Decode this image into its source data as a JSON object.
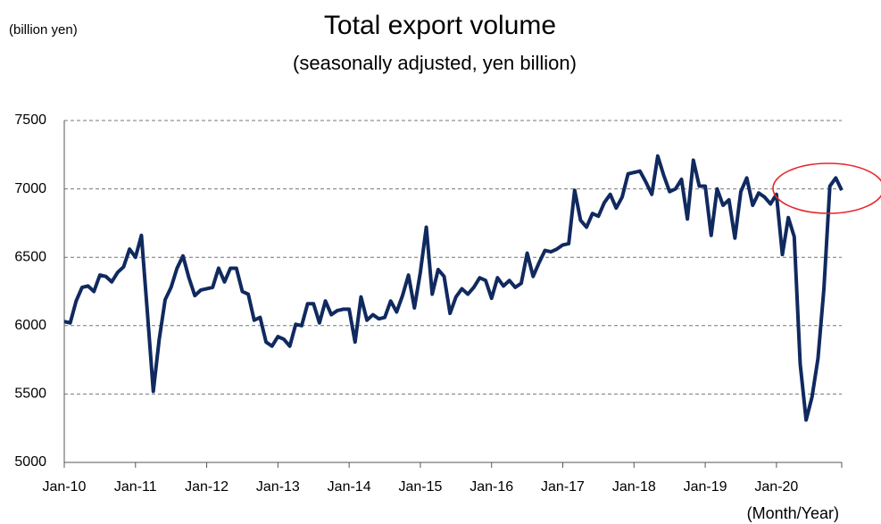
{
  "chart_data": {
    "type": "line",
    "title": "Total export volume",
    "subtitle": "(seasonally adjusted, yen billion)",
    "y_unit_label": "(billion yen)",
    "x_label": "(Month/Year)",
    "categories": [
      "Jan-10",
      null,
      null,
      null,
      null,
      null,
      null,
      null,
      null,
      null,
      null,
      null,
      "Jan-11",
      null,
      null,
      null,
      null,
      null,
      null,
      null,
      null,
      null,
      null,
      null,
      "Jan-12",
      null,
      null,
      null,
      null,
      null,
      null,
      null,
      null,
      null,
      null,
      null,
      "Jan-13",
      null,
      null,
      null,
      null,
      null,
      null,
      null,
      null,
      null,
      null,
      null,
      "Jan-14",
      null,
      null,
      null,
      null,
      null,
      null,
      null,
      null,
      null,
      null,
      null,
      "Jan-15",
      null,
      null,
      null,
      null,
      null,
      null,
      null,
      null,
      null,
      null,
      null,
      "Jan-16",
      null,
      null,
      null,
      null,
      null,
      null,
      null,
      null,
      null,
      null,
      null,
      "Jan-17",
      null,
      null,
      null,
      null,
      null,
      null,
      null,
      null,
      null,
      null,
      null,
      "Jan-18",
      null,
      null,
      null,
      null,
      null,
      null,
      null,
      null,
      null,
      null,
      null,
      "Jan-19",
      null,
      null,
      null,
      null,
      null,
      null,
      null,
      null,
      null,
      null,
      null,
      "Jan-20",
      null,
      null,
      null,
      null,
      null,
      null,
      null,
      null,
      null,
      null,
      null
    ],
    "color": "#10295f",
    "values": [
      6030,
      6020,
      6180,
      6280,
      6290,
      6250,
      6370,
      6360,
      6320,
      6390,
      6430,
      6560,
      6500,
      6660,
      6100,
      5520,
      5900,
      6190,
      6280,
      6420,
      6510,
      6350,
      6220,
      6260,
      6270,
      6280,
      6420,
      6320,
      6420,
      6420,
      6250,
      6230,
      6040,
      6060,
      5880,
      5850,
      5920,
      5900,
      5850,
      6010,
      6000,
      6160,
      6160,
      6020,
      6180,
      6080,
      6110,
      6120,
      6120,
      5880,
      6210,
      6040,
      6080,
      6050,
      6060,
      6180,
      6100,
      6220,
      6370,
      6130,
      6390,
      6720,
      6230,
      6410,
      6360,
      6090,
      6210,
      6270,
      6230,
      6280,
      6350,
      6330,
      6200,
      6350,
      6290,
      6330,
      6280,
      6310,
      6530,
      6360,
      6460,
      6550,
      6540,
      6560,
      6590,
      6600,
      6990,
      6770,
      6720,
      6820,
      6800,
      6900,
      6960,
      6860,
      6940,
      7110,
      7120,
      7130,
      7050,
      6960,
      7240,
      7100,
      6980,
      7000,
      7070,
      6780,
      7210,
      7020,
      7020,
      6660,
      7000,
      6880,
      6920,
      6640,
      6980,
      7080,
      6880,
      6970,
      6940,
      6890,
      6960,
      6520,
      6790,
      6650,
      5720,
      5310,
      5480,
      5760,
      6270,
      7020,
      7080,
      6990
    ],
    "ylim": [
      5000,
      7500
    ],
    "yticks": [
      5000,
      5500,
      6000,
      6500,
      7000,
      7500
    ],
    "grid": true
  }
}
